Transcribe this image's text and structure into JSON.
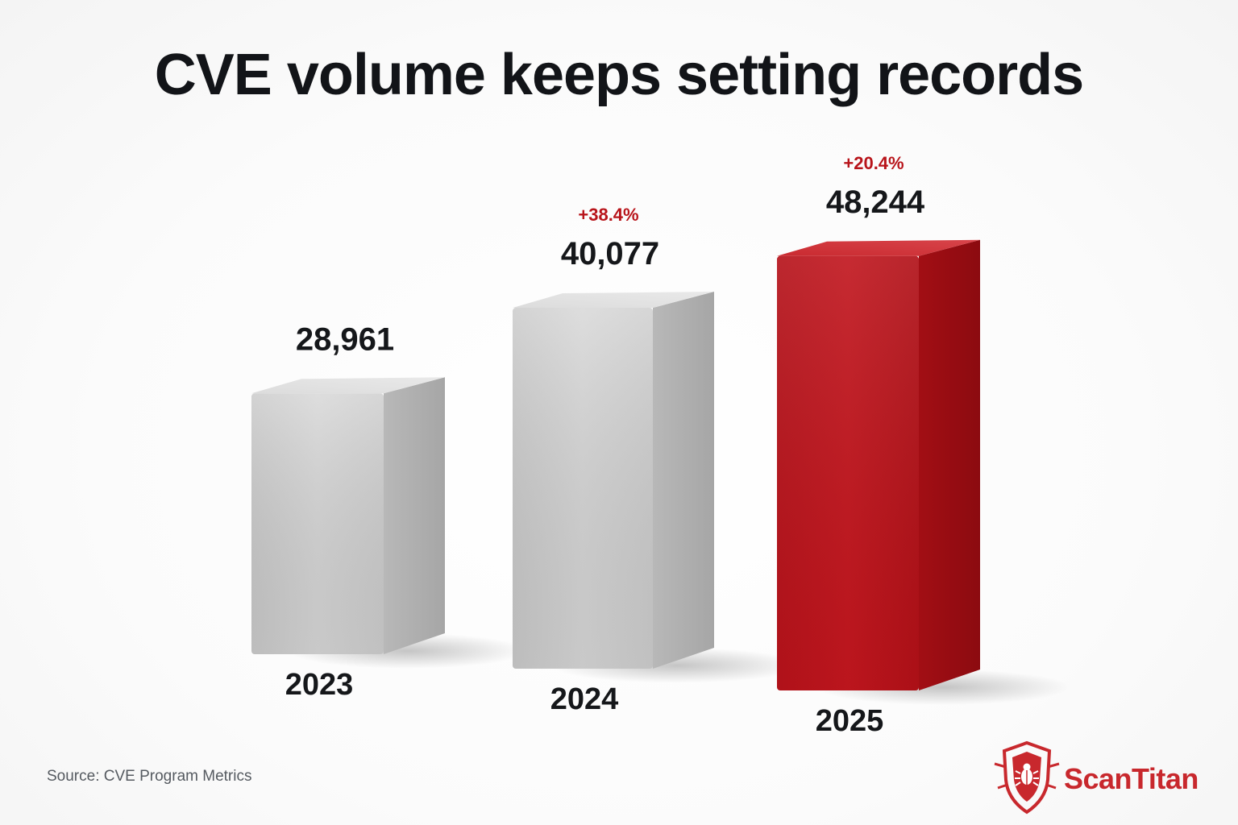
{
  "chart_data": {
    "type": "bar",
    "title": "CVE volume keeps setting records",
    "categories": [
      "2023",
      "2024",
      "2025"
    ],
    "values": [
      28961,
      40077,
      48244
    ],
    "value_labels": [
      "28,961",
      "40,077",
      "48,244"
    ],
    "growth_labels": [
      "",
      "+38.4%",
      "+20.4%"
    ],
    "ylim": [
      0,
      55000
    ],
    "grid": false,
    "highlight_index": 2,
    "colors": {
      "default_bar": "#cfcfcf",
      "highlight_bar": "#b8141a",
      "growth_text": "#b8141a"
    }
  },
  "source": "Source: CVE Program Metrics",
  "brand": {
    "name": "ScanTitan",
    "icon": "bug-shield-icon",
    "color": "#c8282d"
  }
}
